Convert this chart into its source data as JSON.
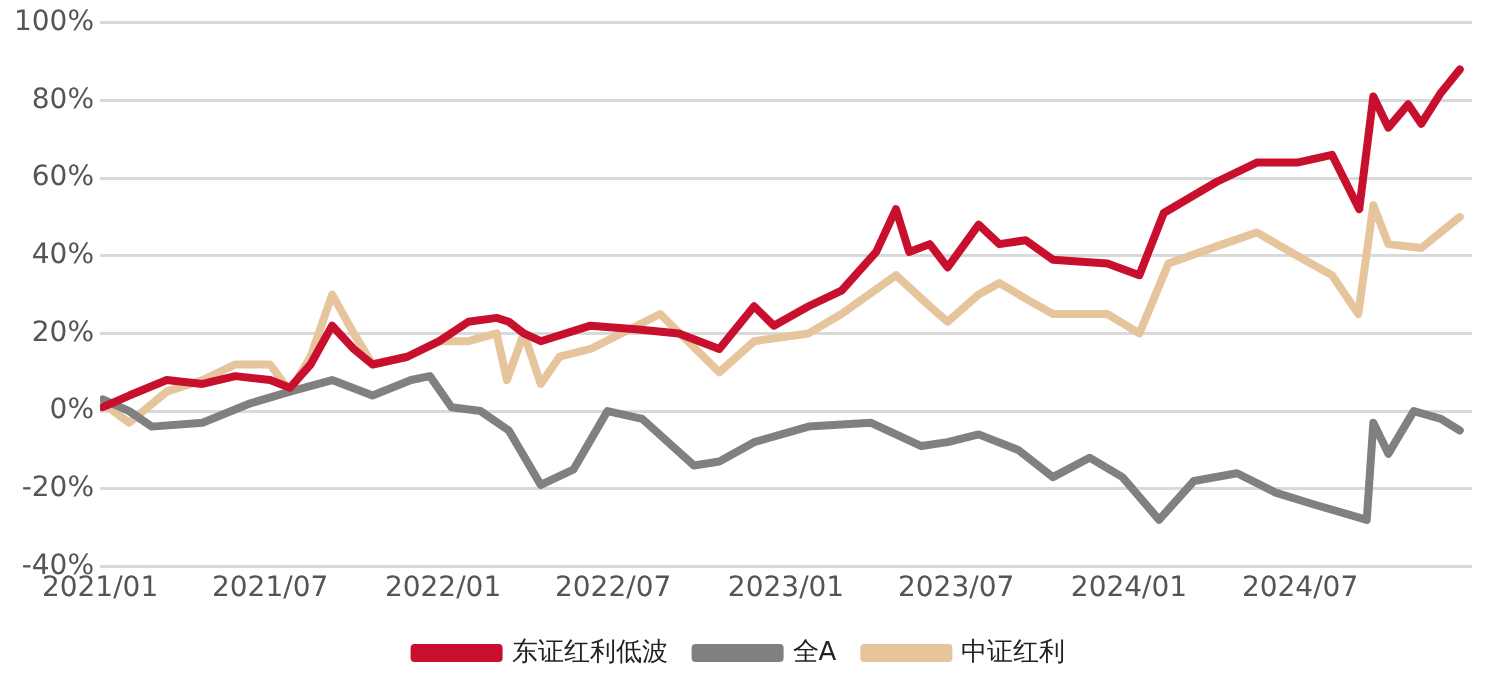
{
  "chart_data": {
    "type": "line",
    "xlim": [
      "2021-01-01",
      "2024-12-31"
    ],
    "xticks": [
      {
        "value": "2021-01",
        "label": "2021/01"
      },
      {
        "value": "2021-07",
        "label": "2021/07"
      },
      {
        "value": "2022-01",
        "label": "2022/01"
      },
      {
        "value": "2022-07",
        "label": "2022/07"
      },
      {
        "value": "2023-01",
        "label": "2023/01"
      },
      {
        "value": "2023-07",
        "label": "2023/07"
      },
      {
        "value": "2024-01",
        "label": "2024/01"
      },
      {
        "value": "2024-07",
        "label": "2024/07"
      }
    ],
    "ylim": [
      -40,
      100
    ],
    "yticks": [
      {
        "value": -40,
        "label": "-40%"
      },
      {
        "value": -20,
        "label": "-20%"
      },
      {
        "value": 0,
        "label": "0%"
      },
      {
        "value": 20,
        "label": "20%"
      },
      {
        "value": 40,
        "label": "40%"
      },
      {
        "value": 60,
        "label": "60%"
      },
      {
        "value": 80,
        "label": "80%"
      },
      {
        "value": 100,
        "label": "100%"
      }
    ],
    "grid": "y",
    "legend": "bottom",
    "marker": "none",
    "line_style": "solid",
    "series": [
      {
        "name": "东证红利低波",
        "color": "#c8102e",
        "x": [
          "2021-01-04",
          "2021-02-01",
          "2021-03-13",
          "2021-04-20",
          "2021-05-25",
          "2021-07-01",
          "2021-07-22",
          "2021-08-13",
          "2021-09-05",
          "2021-09-28",
          "2021-10-18",
          "2021-11-24",
          "2021-12-28",
          "2022-01-28",
          "2022-02-27",
          "2022-03-12",
          "2022-03-28",
          "2022-04-15",
          "2022-06-07",
          "2022-07-28",
          "2022-09-09",
          "2022-10-22",
          "2022-11-28",
          "2022-12-19",
          "2023-01-25",
          "2023-03-01",
          "2023-04-07",
          "2023-04-28",
          "2023-05-12",
          "2023-06-03",
          "2023-06-22",
          "2023-07-25",
          "2023-08-16",
          "2023-09-13",
          "2023-10-12",
          "2023-12-09",
          "2024-01-12",
          "2024-02-07",
          "2024-04-03",
          "2024-05-16",
          "2024-06-28",
          "2024-08-04",
          "2024-09-02",
          "2024-09-17",
          "2024-10-03",
          "2024-10-24",
          "2024-11-07",
          "2024-11-28",
          "2024-12-18"
        ],
        "values": [
          1,
          4,
          8,
          7,
          9,
          8,
          6,
          12,
          22,
          16,
          12,
          14,
          18,
          23,
          24,
          23,
          20,
          18,
          22,
          21,
          20,
          16,
          27,
          22,
          27,
          31,
          41,
          52,
          41,
          43,
          37,
          48,
          43,
          44,
          39,
          38,
          35,
          51,
          59,
          64,
          64,
          66,
          52,
          81,
          73,
          79,
          74,
          82,
          88
        ]
      },
      {
        "name": "全A",
        "color": "#808080",
        "x": [
          "2021-01-04",
          "2021-02-01",
          "2021-02-25",
          "2021-04-20",
          "2021-06-10",
          "2021-07-22",
          "2021-09-05",
          "2021-10-18",
          "2021-11-28",
          "2021-12-18",
          "2022-01-10",
          "2022-02-10",
          "2022-03-12",
          "2022-04-15",
          "2022-05-20",
          "2022-06-25",
          "2022-08-01",
          "2022-09-25",
          "2022-10-22",
          "2022-11-28",
          "2023-01-25",
          "2023-04-01",
          "2023-05-25",
          "2023-06-22",
          "2023-07-25",
          "2023-09-05",
          "2023-10-12",
          "2023-11-20",
          "2023-12-25",
          "2024-02-02",
          "2024-03-10",
          "2024-04-25",
          "2024-06-05",
          "2024-07-15",
          "2024-09-10",
          "2024-09-17",
          "2024-10-03",
          "2024-10-30",
          "2024-11-28",
          "2024-12-18"
        ],
        "values": [
          3,
          0,
          -4,
          -3,
          2,
          5,
          8,
          4,
          8,
          9,
          1,
          0,
          -5,
          -19,
          -15,
          0,
          -2,
          -14,
          -13,
          -8,
          -4,
          -3,
          -9,
          -8,
          -6,
          -10,
          -17,
          -12,
          -17,
          -28,
          -18,
          -16,
          -21,
          -24,
          -28,
          -3,
          -11,
          0,
          -2,
          -5
        ]
      },
      {
        "name": "中证红利",
        "color": "#e6c49c",
        "x": [
          "2021-01-04",
          "2021-02-01",
          "2021-03-13",
          "2021-04-20",
          "2021-05-25",
          "2021-07-01",
          "2021-07-22",
          "2021-08-13",
          "2021-09-05",
          "2021-09-28",
          "2021-10-18",
          "2021-11-24",
          "2021-12-28",
          "2022-01-28",
          "2022-02-27",
          "2022-03-10",
          "2022-03-28",
          "2022-04-15",
          "2022-05-05",
          "2022-06-07",
          "2022-08-20",
          "2022-10-22",
          "2022-11-28",
          "2023-01-25",
          "2023-03-01",
          "2023-04-28",
          "2023-06-03",
          "2023-06-22",
          "2023-07-25",
          "2023-08-16",
          "2023-09-20",
          "2023-10-12",
          "2023-12-09",
          "2024-01-12",
          "2024-02-12",
          "2024-04-10",
          "2024-05-16",
          "2024-06-28",
          "2024-08-04",
          "2024-09-01",
          "2024-09-17",
          "2024-10-03",
          "2024-11-07",
          "2024-12-18"
        ],
        "values": [
          2,
          -3,
          5,
          8,
          12,
          12,
          5,
          14,
          30,
          20,
          12,
          14,
          18,
          18,
          20,
          8,
          20,
          7,
          14,
          16,
          25,
          10,
          18,
          20,
          25,
          35,
          27,
          23,
          30,
          33,
          28,
          25,
          25,
          20,
          38,
          43,
          46,
          40,
          35,
          25,
          53,
          43,
          42,
          50
        ]
      }
    ]
  }
}
